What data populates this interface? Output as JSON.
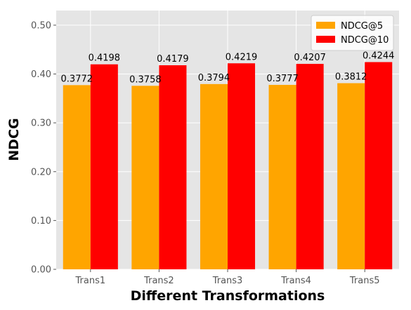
{
  "chart_data": {
    "type": "bar",
    "title": "",
    "xlabel": "Different Transformations",
    "ylabel": "NDCG",
    "categories": [
      "Trans1",
      "Trans2",
      "Trans3",
      "Trans4",
      "Trans5"
    ],
    "series": [
      {
        "name": "NDCG@5",
        "color": "#FFA500",
        "values": [
          0.3772,
          0.3758,
          0.3794,
          0.3777,
          0.3812
        ],
        "labels": [
          "0.3772",
          "0.3758",
          "0.3794",
          "0.3777",
          "0.3812"
        ]
      },
      {
        "name": "NDCG@10",
        "color": "#FF0000",
        "values": [
          0.4198,
          0.4179,
          0.4219,
          0.4207,
          0.4244
        ],
        "labels": [
          "0.4198",
          "0.4179",
          "0.4219",
          "0.4207",
          "0.4244"
        ]
      }
    ],
    "ylim": [
      0,
      0.53
    ],
    "yticks": [
      0.0,
      0.1,
      0.2,
      0.3,
      0.4,
      0.5
    ],
    "ytick_labels": [
      "0.00",
      "0.10",
      "0.20",
      "0.30",
      "0.40",
      "0.50"
    ],
    "grid": true,
    "legend_position": "top-right",
    "plot_background": "#E5E5E5"
  }
}
